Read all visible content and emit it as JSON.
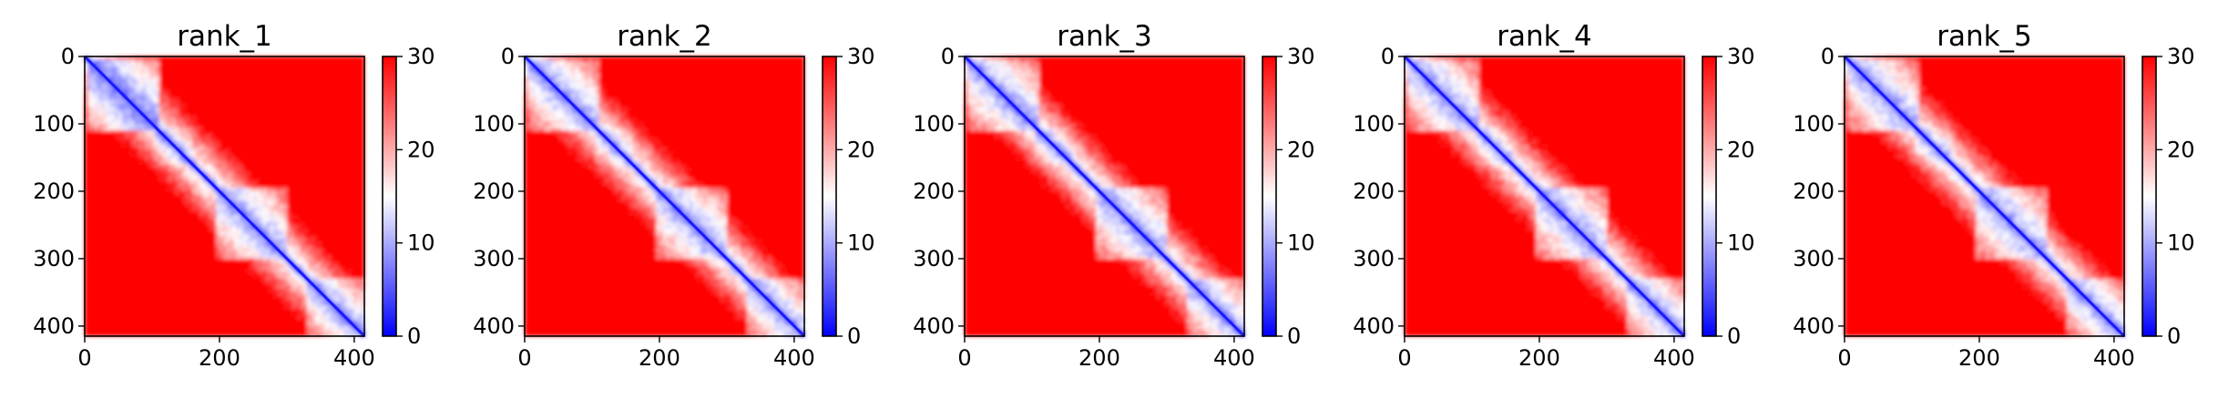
{
  "chart_data": [
    {
      "type": "heatmap",
      "title": "rank_1",
      "x_ticks": [
        0,
        200,
        400
      ],
      "y_ticks": [
        0,
        100,
        200,
        300,
        400
      ],
      "xlim": [
        0,
        415
      ],
      "ylim": [
        415,
        0
      ],
      "colorbar": {
        "ticks": [
          0,
          10,
          20,
          30
        ],
        "range": [
          0,
          30
        ],
        "colormap": [
          "#0000ff",
          "#ffffff",
          "#ff0000"
        ]
      }
    },
    {
      "type": "heatmap",
      "title": "rank_2",
      "x_ticks": [
        0,
        200,
        400
      ],
      "y_ticks": [
        0,
        100,
        200,
        300,
        400
      ],
      "xlim": [
        0,
        415
      ],
      "ylim": [
        415,
        0
      ],
      "colorbar": {
        "ticks": [
          0,
          10,
          20,
          30
        ],
        "range": [
          0,
          30
        ],
        "colormap": [
          "#0000ff",
          "#ffffff",
          "#ff0000"
        ]
      }
    },
    {
      "type": "heatmap",
      "title": "rank_3",
      "x_ticks": [
        0,
        200,
        400
      ],
      "y_ticks": [
        0,
        100,
        200,
        300,
        400
      ],
      "xlim": [
        0,
        415
      ],
      "ylim": [
        415,
        0
      ],
      "colorbar": {
        "ticks": [
          0,
          10,
          20,
          30
        ],
        "range": [
          0,
          30
        ],
        "colormap": [
          "#0000ff",
          "#ffffff",
          "#ff0000"
        ]
      }
    },
    {
      "type": "heatmap",
      "title": "rank_4",
      "x_ticks": [
        0,
        200,
        400
      ],
      "y_ticks": [
        0,
        100,
        200,
        300,
        400
      ],
      "xlim": [
        0,
        415
      ],
      "ylim": [
        415,
        0
      ],
      "colorbar": {
        "ticks": [
          0,
          10,
          20,
          30
        ],
        "range": [
          0,
          30
        ],
        "colormap": [
          "#0000ff",
          "#ffffff",
          "#ff0000"
        ]
      }
    },
    {
      "type": "heatmap",
      "title": "rank_5",
      "x_ticks": [
        0,
        200,
        400
      ],
      "y_ticks": [
        0,
        100,
        200,
        300,
        400
      ],
      "xlim": [
        0,
        415
      ],
      "ylim": [
        415,
        0
      ],
      "colorbar": {
        "ticks": [
          0,
          10,
          20,
          30
        ],
        "range": [
          0,
          30
        ],
        "colormap": [
          "#0000ff",
          "#ffffff",
          "#ff0000"
        ]
      }
    }
  ]
}
